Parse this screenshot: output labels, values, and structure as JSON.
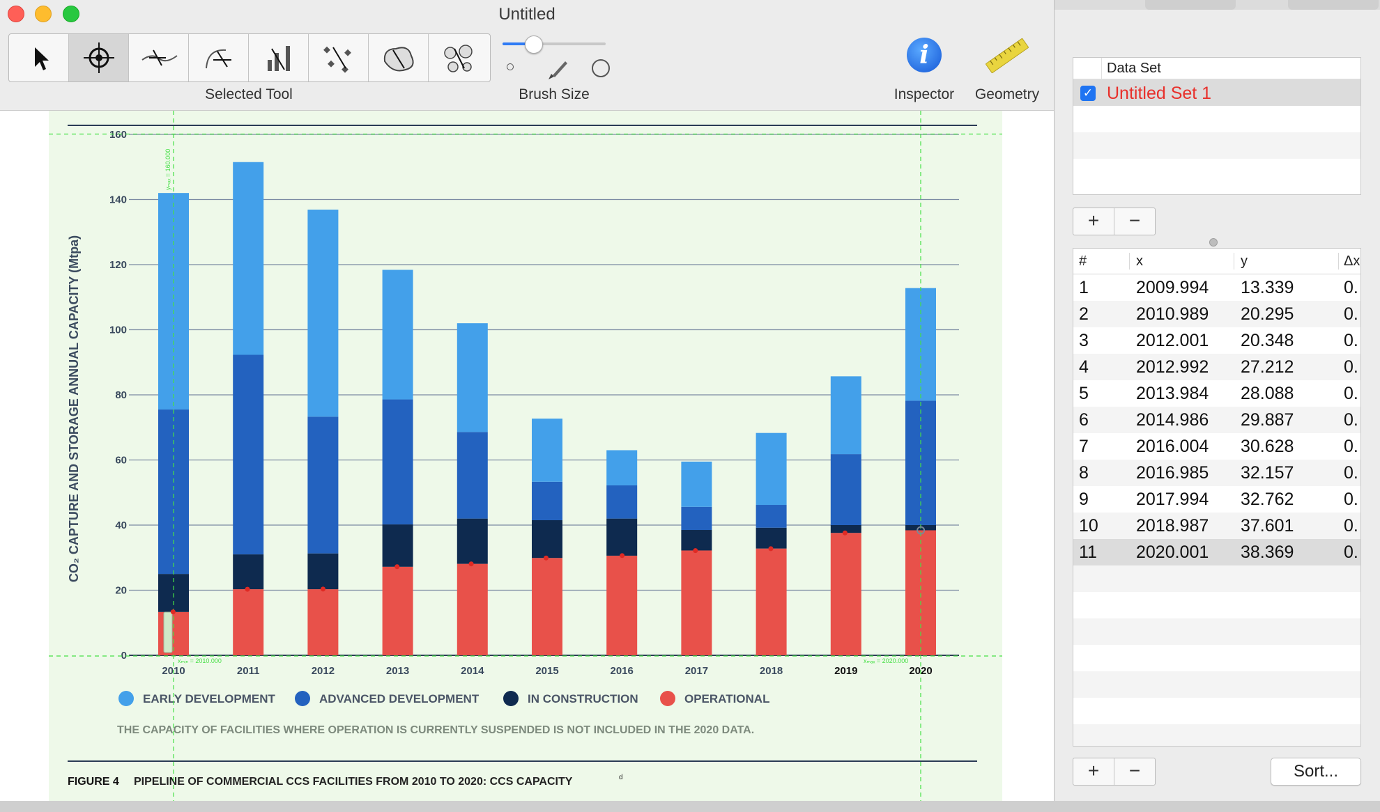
{
  "window": {
    "title": "Untitled",
    "tool_caption": "Selected Tool",
    "brush_caption": "Brush Size",
    "brush_level": 0.3,
    "inspector_label": "Inspector",
    "geometry_label": "Geometry",
    "tools": [
      {
        "name": "pointer-tool",
        "icon": "arrow-pointer-icon",
        "selected": false
      },
      {
        "name": "point-picker-tool",
        "icon": "crosshair-icon",
        "selected": true
      },
      {
        "name": "trace-line-tool",
        "icon": "line-trace-icon",
        "selected": false
      },
      {
        "name": "trace-curve-tool",
        "icon": "curve-trace-icon",
        "selected": false
      },
      {
        "name": "bar-tool",
        "icon": "bar-wand-icon",
        "selected": false
      },
      {
        "name": "scatter-tool",
        "icon": "scatter-wand-icon",
        "selected": false
      },
      {
        "name": "area-tool",
        "icon": "area-wand-icon",
        "selected": false
      },
      {
        "name": "cluster-tool",
        "icon": "cluster-wand-icon",
        "selected": false
      }
    ]
  },
  "chart_data": {
    "type": "bar",
    "stacked": true,
    "categories": [
      "2010",
      "2011",
      "2012",
      "2013",
      "2014",
      "2015",
      "2016",
      "2017",
      "2018",
      "2019",
      "2020"
    ],
    "series": [
      {
        "name": "OPERATIONAL",
        "color": "#e8514a",
        "values": [
          13.3,
          20.3,
          20.3,
          27.2,
          28.1,
          29.9,
          30.6,
          32.2,
          32.8,
          37.6,
          38.4
        ]
      },
      {
        "name": "IN CONSTRUCTION",
        "color": "#0e2a4f",
        "values": [
          11.7,
          10.7,
          11.0,
          13.0,
          13.9,
          11.6,
          11.4,
          6.3,
          6.4,
          2.4,
          1.6
        ]
      },
      {
        "name": "ADVANCED DEVELOPMENT",
        "color": "#2362bf",
        "values": [
          50.5,
          61.3,
          42.0,
          38.4,
          26.6,
          11.8,
          10.2,
          7.1,
          7.0,
          21.8,
          38.2
        ]
      },
      {
        "name": "EARLY DEVELOPMENT",
        "color": "#43a0ea",
        "values": [
          66.5,
          59.2,
          63.6,
          39.8,
          33.4,
          19.4,
          10.8,
          13.9,
          22.1,
          23.9,
          34.6
        ]
      }
    ],
    "ylabel": "CO₂ CAPTURE AND STORAGE ANNUAL CAPACITY (Mtpa)",
    "ylim": [
      0,
      160
    ],
    "yticks": [
      0,
      20,
      40,
      60,
      80,
      100,
      120,
      140,
      160
    ],
    "bold_x_labels": [
      "2019",
      "2020"
    ],
    "grid": true,
    "legend_position": "bottom",
    "note": "THE CAPACITY OF FACILITIES WHERE OPERATION IS CURRENTLY SUSPENDED IS NOT INCLUDED IN THE 2020 DATA.",
    "figure_number": "FIGURE 4",
    "caption": "PIPELINE OF COMMERCIAL CCS FACILITIES FROM 2010 TO 2020: CCS CAPACITY",
    "caption_superscript": "d",
    "calibration": {
      "x_min_label": "xₘᵢₙ = 2010.000",
      "x_max_label": "xₘₐₓ = 2020.000",
      "y_min_label": "yₘᵢₙ = 0.000",
      "y_max_label": "yₘₐₓ = 160.000",
      "line_color": "#45e045"
    },
    "picked_points": [
      {
        "x": 2009.994,
        "y": 13.339
      },
      {
        "x": 2010.989,
        "y": 20.295
      },
      {
        "x": 2012.001,
        "y": 20.348
      },
      {
        "x": 2012.992,
        "y": 27.212
      },
      {
        "x": 2013.984,
        "y": 28.088
      },
      {
        "x": 2014.986,
        "y": 29.887
      },
      {
        "x": 2016.004,
        "y": 30.628
      },
      {
        "x": 2016.985,
        "y": 32.157
      },
      {
        "x": 2017.994,
        "y": 32.762
      },
      {
        "x": 2018.987,
        "y": 37.601
      },
      {
        "x": 2020.001,
        "y": 38.369
      }
    ]
  },
  "panel": {
    "dataset_header": "Data Set",
    "dataset_name": "Untitled Set 1",
    "dataset_checked": true,
    "dataset_color": "#e8302b",
    "add_label": "+",
    "remove_label": "−",
    "sort_label": "Sort...",
    "columns": [
      "#",
      "x",
      "y",
      "Δx"
    ],
    "rows": [
      {
        "num": "1",
        "x": "2009.994",
        "y": "13.339",
        "dx": "0."
      },
      {
        "num": "2",
        "x": "2010.989",
        "y": "20.295",
        "dx": "0."
      },
      {
        "num": "3",
        "x": "2012.001",
        "y": "20.348",
        "dx": "0."
      },
      {
        "num": "4",
        "x": "2012.992",
        "y": "27.212",
        "dx": "0."
      },
      {
        "num": "5",
        "x": "2013.984",
        "y": "28.088",
        "dx": "0."
      },
      {
        "num": "6",
        "x": "2014.986",
        "y": "29.887",
        "dx": "0."
      },
      {
        "num": "7",
        "x": "2016.004",
        "y": "30.628",
        "dx": "0."
      },
      {
        "num": "8",
        "x": "2016.985",
        "y": "32.157",
        "dx": "0."
      },
      {
        "num": "9",
        "x": "2017.994",
        "y": "32.762",
        "dx": "0."
      },
      {
        "num": "10",
        "x": "2018.987",
        "y": "37.601",
        "dx": "0."
      },
      {
        "num": "11",
        "x": "2020.001",
        "y": "38.369",
        "dx": "0."
      }
    ],
    "selected_row": 11
  }
}
